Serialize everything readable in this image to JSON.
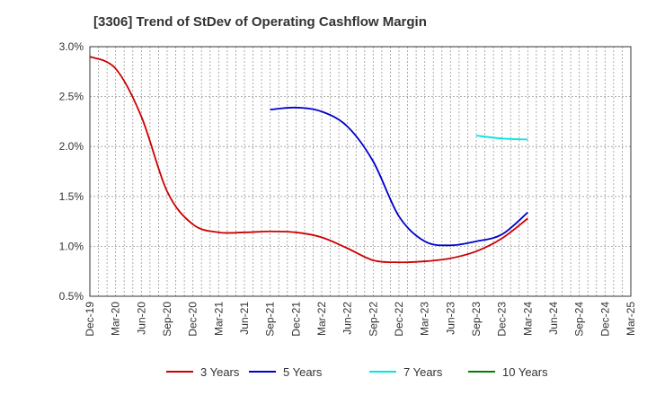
{
  "chart_data": {
    "type": "line",
    "title": "[3306]  Trend of StDev of Operating Cashflow Margin",
    "xlabel": "",
    "ylabel": "",
    "x_categories": [
      "Dec-19",
      "Mar-20",
      "Jun-20",
      "Sep-20",
      "Dec-20",
      "Mar-21",
      "Jun-21",
      "Sep-21",
      "Dec-21",
      "Mar-22",
      "Jun-22",
      "Sep-22",
      "Dec-22",
      "Mar-23",
      "Jun-23",
      "Sep-23",
      "Dec-23",
      "Mar-24",
      "Jun-24",
      "Sep-24",
      "Dec-24",
      "Mar-25"
    ],
    "y_ticks": [
      "0.5%",
      "1.0%",
      "1.5%",
      "2.0%",
      "2.5%",
      "3.0%"
    ],
    "y_tick_values": [
      0.5,
      1.0,
      1.5,
      2.0,
      2.5,
      3.0
    ],
    "ylim": [
      0.5,
      3.0
    ],
    "grid": true,
    "legend_position": "bottom",
    "series": [
      {
        "name": "3 Years",
        "color": "#cc0000",
        "values": [
          2.9,
          2.78,
          2.3,
          1.55,
          1.22,
          1.14,
          1.14,
          1.15,
          1.14,
          1.09,
          0.98,
          0.86,
          0.84,
          0.85,
          0.88,
          0.95,
          1.08,
          1.28,
          null,
          null,
          null,
          null
        ]
      },
      {
        "name": "5 Years",
        "color": "#0000cc",
        "values": [
          null,
          null,
          null,
          null,
          null,
          null,
          null,
          2.37,
          2.39,
          2.35,
          2.2,
          1.85,
          1.3,
          1.05,
          1.01,
          1.05,
          1.12,
          1.34,
          null,
          null,
          null,
          null
        ]
      },
      {
        "name": "7 Years",
        "color": "#00e5e5",
        "values": [
          null,
          null,
          null,
          null,
          null,
          null,
          null,
          null,
          null,
          null,
          null,
          null,
          null,
          null,
          null,
          2.11,
          2.08,
          2.07,
          null,
          null,
          null,
          null
        ]
      },
      {
        "name": "10 Years",
        "color": "#008000",
        "values": [
          null,
          null,
          null,
          null,
          null,
          null,
          null,
          null,
          null,
          null,
          null,
          null,
          null,
          null,
          null,
          null,
          null,
          null,
          null,
          null,
          null,
          null
        ]
      }
    ]
  }
}
